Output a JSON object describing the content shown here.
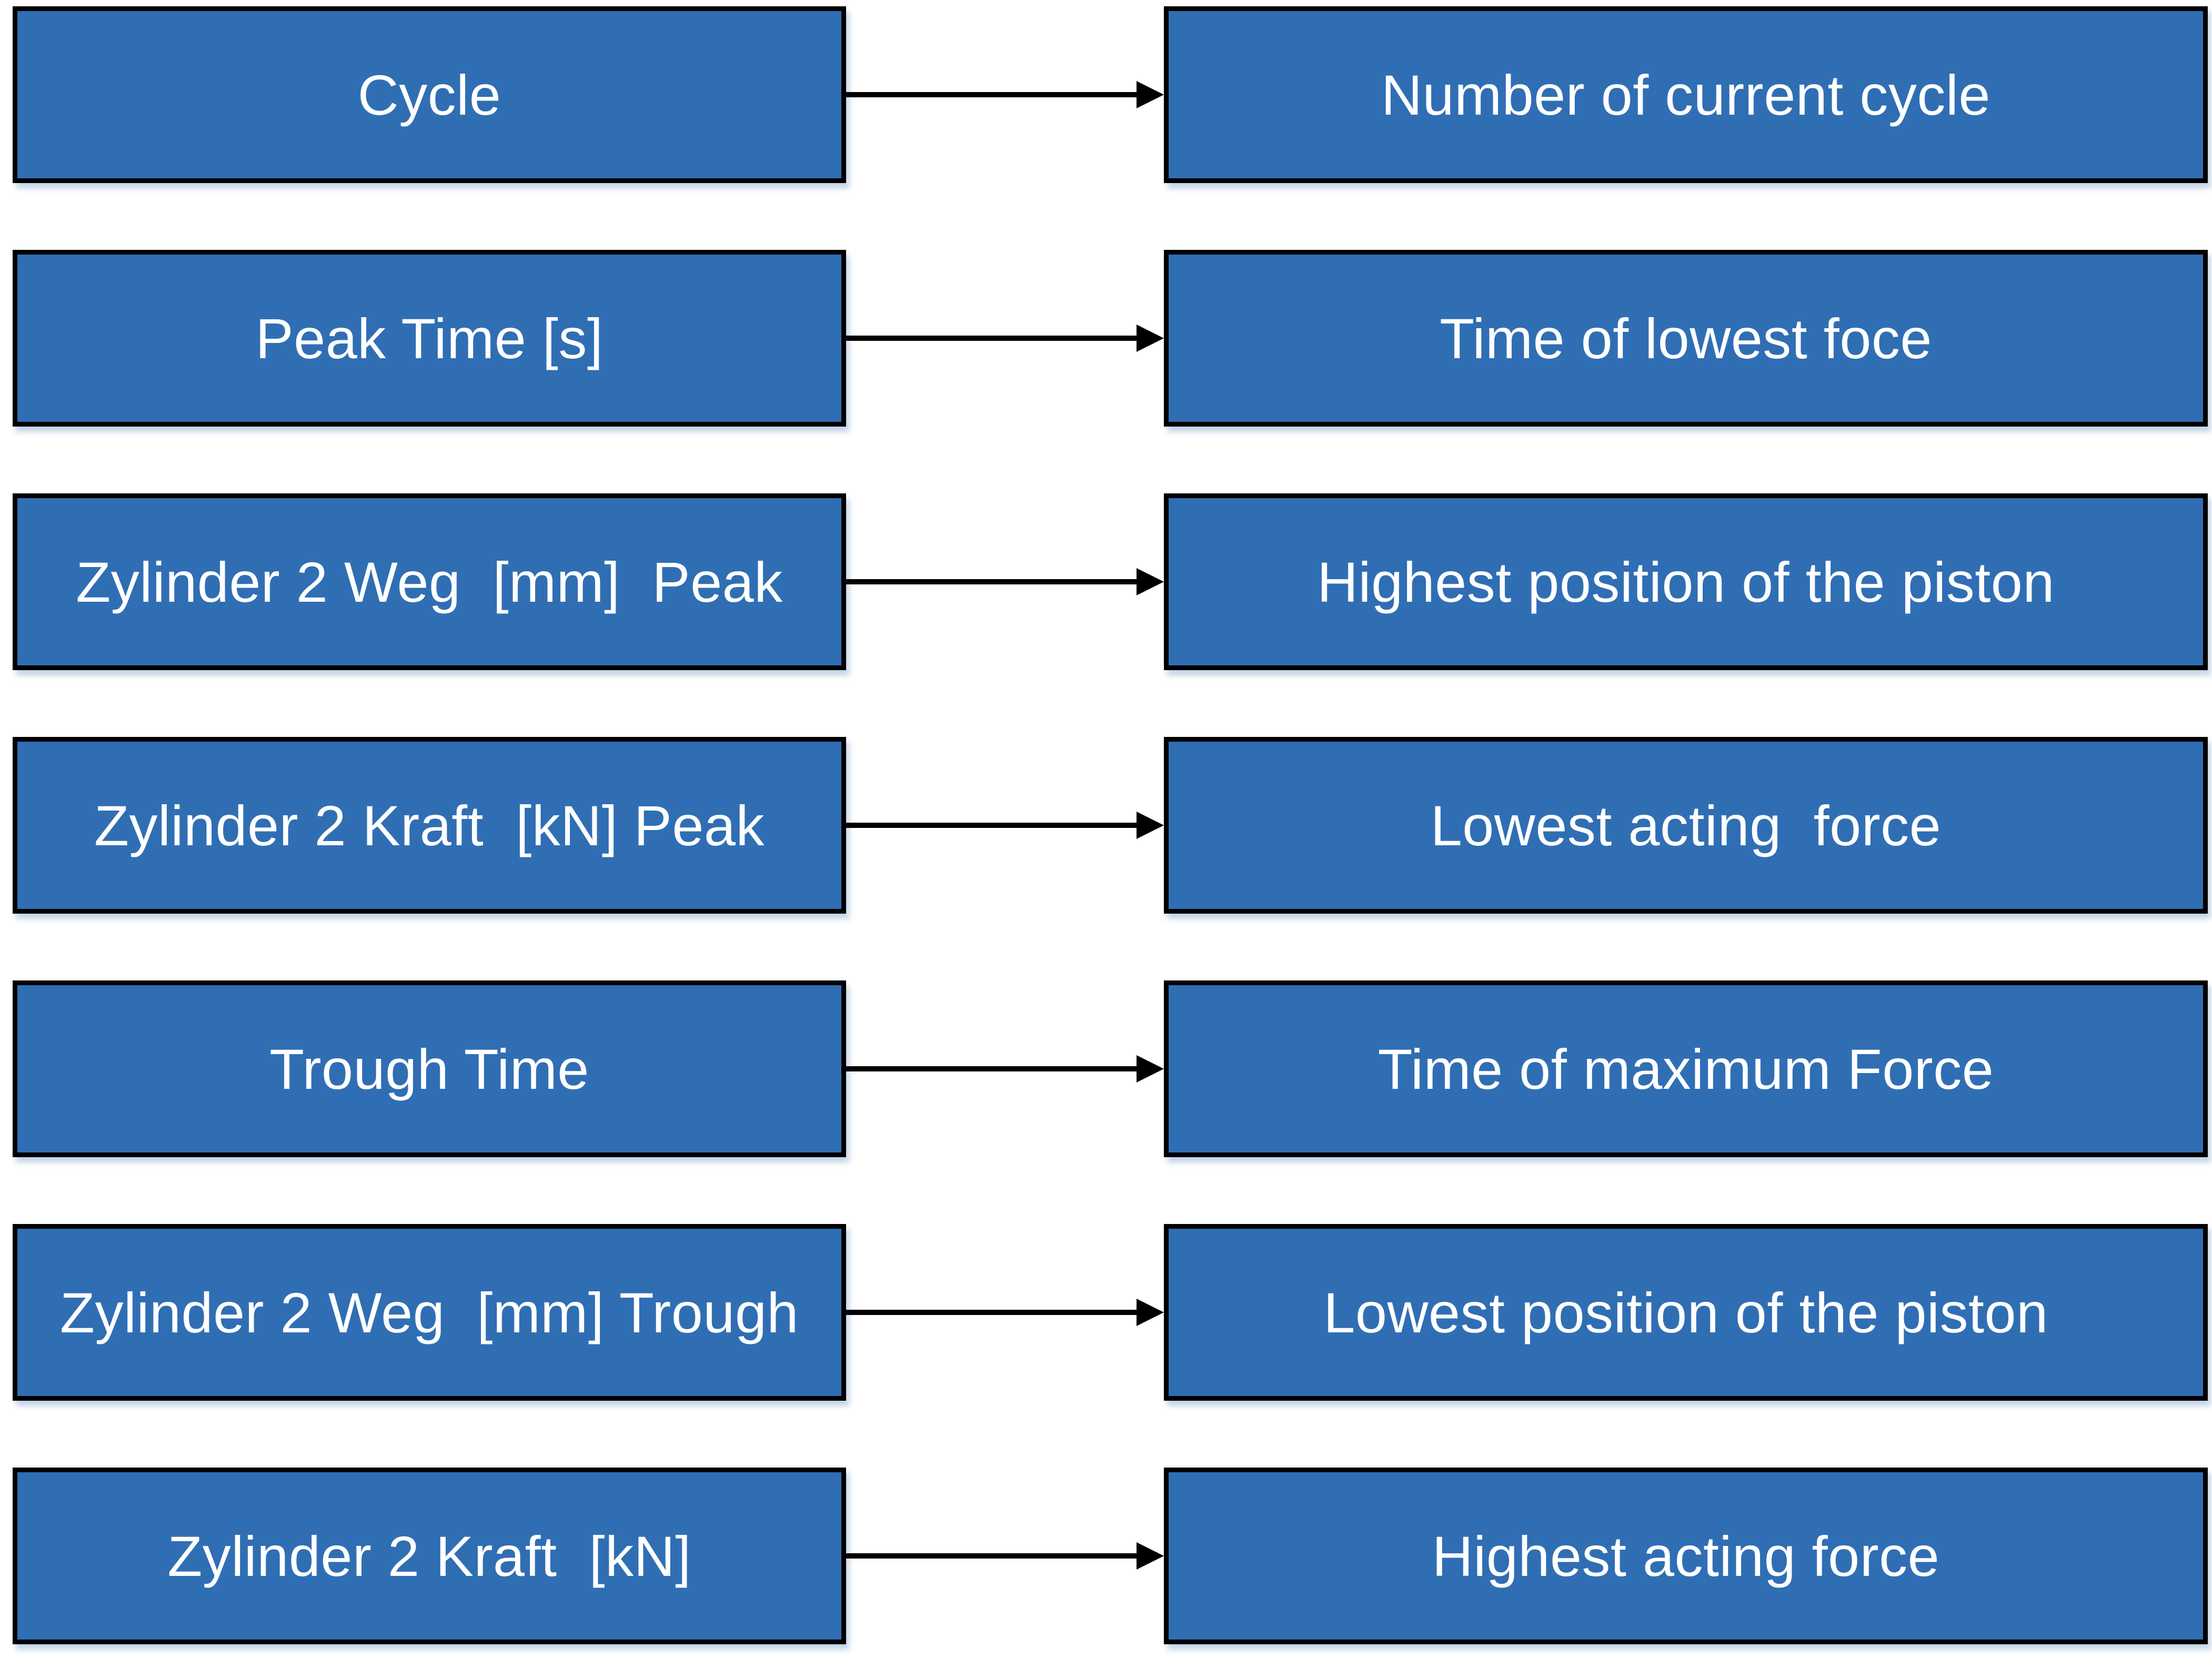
{
  "diagram": {
    "colors": {
      "box_fill": "#306EB4",
      "box_border": "#000000",
      "text": "#ffffff",
      "arrow": "#000000"
    },
    "rows": [
      {
        "left": "Cycle",
        "right": "Number of current cycle"
      },
      {
        "left": "Peak Time [s]",
        "right": "Time of lowest foce"
      },
      {
        "left": "Zylinder 2 Weg  [mm]  Peak",
        "right": "Highest position of the piston"
      },
      {
        "left": "Zylinder 2 Kraft  [kN] Peak",
        "right": "Lowest acting  force"
      },
      {
        "left": "Trough Time",
        "right": "Time of maximum Force"
      },
      {
        "left": "Zylinder 2 Weg  [mm] Trough",
        "right": "Lowest position of the piston"
      },
      {
        "left": "Zylinder 2 Kraft  [kN]",
        "right": "Highest acting force"
      }
    ]
  }
}
